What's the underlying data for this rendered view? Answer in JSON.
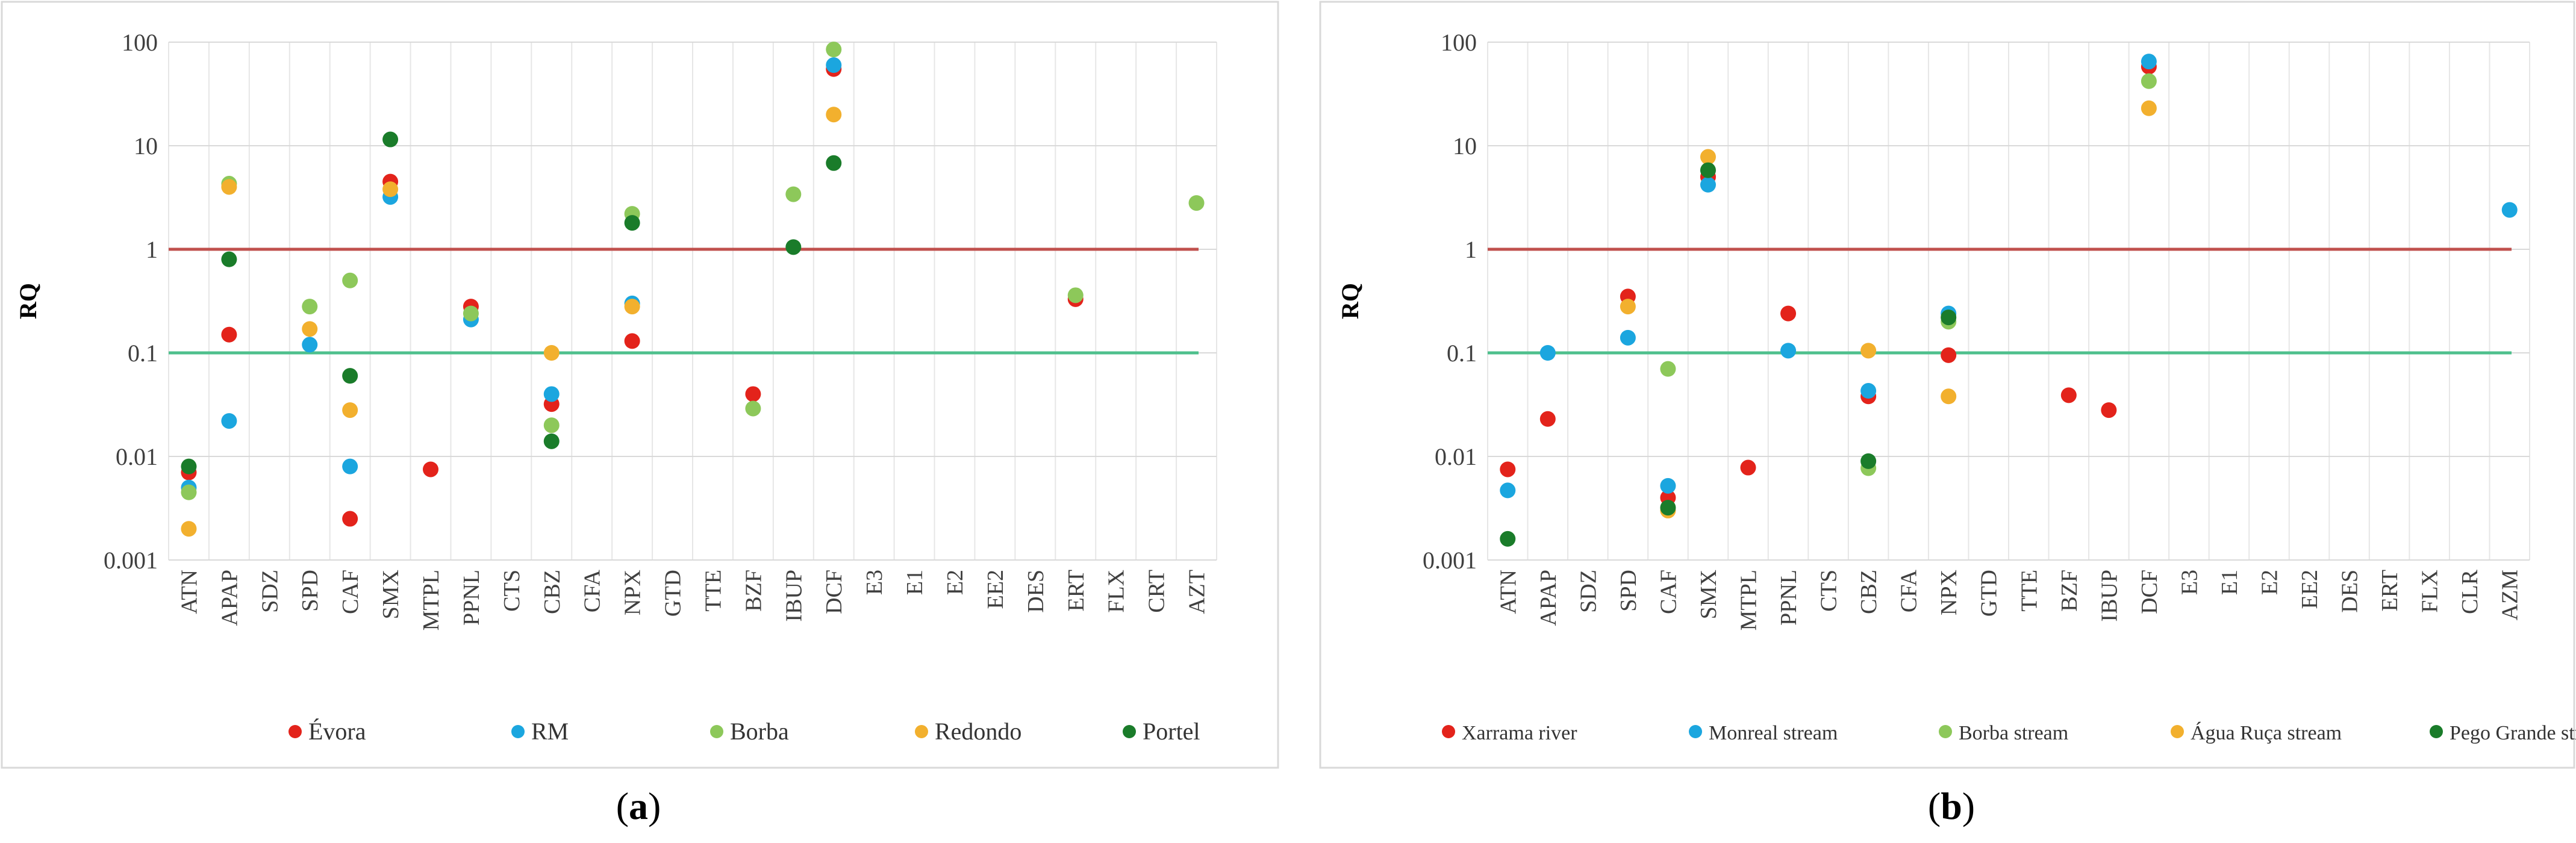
{
  "chart_data": [
    {
      "id": "a",
      "type": "scatter",
      "caption_letter": "a",
      "ylabel": "RQ",
      "yscale": "log",
      "ylim": [
        0.001,
        100
      ],
      "ytick_labels": [
        "0.001",
        "0.01",
        "0.1",
        "1",
        "10",
        "100"
      ],
      "categories": [
        "ATN",
        "APAP",
        "SDZ",
        "SPD",
        "CAF",
        "SMX",
        "MTPL",
        "PPNL",
        "CTS",
        "CBZ",
        "CFA",
        "NPX",
        "GTD",
        "TTE",
        "BZF",
        "IBUP",
        "DCF",
        "E3",
        "E1",
        "E2",
        "EE2",
        "DES",
        "ERT",
        "FLX",
        "CRT",
        "AZT"
      ],
      "thresholds": [
        {
          "value": 1,
          "color": "#c0504d"
        },
        {
          "value": 0.1,
          "color": "#4fc08d"
        }
      ],
      "legend_position": "bottom",
      "series": [
        {
          "name": "Évora",
          "color": "#e3231b",
          "points": [
            [
              "ATN",
              0.007
            ],
            [
              "APAP",
              0.15
            ],
            [
              "CAF",
              0.0025
            ],
            [
              "SMX",
              4.5
            ],
            [
              "MTPL",
              0.0075
            ],
            [
              "PPNL",
              0.28
            ],
            [
              "CBZ",
              0.032
            ],
            [
              "NPX",
              0.13
            ],
            [
              "BZF",
              0.04
            ],
            [
              "DCF",
              55
            ],
            [
              "ERT",
              0.33
            ]
          ]
        },
        {
          "name": "RM",
          "color": "#1ba6df",
          "points": [
            [
              "ATN",
              0.005
            ],
            [
              "APAP",
              0.022
            ],
            [
              "SPD",
              0.12
            ],
            [
              "CAF",
              0.008
            ],
            [
              "SMX",
              3.2
            ],
            [
              "PPNL",
              0.21
            ],
            [
              "CBZ",
              0.04
            ],
            [
              "NPX",
              0.3
            ],
            [
              "DCF",
              60
            ]
          ]
        },
        {
          "name": "Borba",
          "color": "#8dc85a",
          "points": [
            [
              "ATN",
              0.0045
            ],
            [
              "APAP",
              4.3
            ],
            [
              "SPD",
              0.28
            ],
            [
              "CAF",
              0.5
            ],
            [
              "PPNL",
              0.24
            ],
            [
              "CBZ",
              0.02
            ],
            [
              "NPX",
              2.2
            ],
            [
              "BZF",
              0.029
            ],
            [
              "IBUP",
              3.4
            ],
            [
              "DCF",
              85
            ],
            [
              "ERT",
              0.36
            ],
            [
              "AZT",
              2.8
            ]
          ]
        },
        {
          "name": "Redondo",
          "color": "#f2b02e",
          "points": [
            [
              "ATN",
              0.002
            ],
            [
              "APAP",
              4.0
            ],
            [
              "SPD",
              0.17
            ],
            [
              "CAF",
              0.028
            ],
            [
              "SMX",
              3.8
            ],
            [
              "CBZ",
              0.1
            ],
            [
              "NPX",
              0.28
            ],
            [
              "DCF",
              20
            ]
          ]
        },
        {
          "name": "Portel",
          "color": "#1a7c2a",
          "points": [
            [
              "ATN",
              0.008
            ],
            [
              "APAP",
              0.8
            ],
            [
              "CAF",
              0.06
            ],
            [
              "SMX",
              11.5
            ],
            [
              "CBZ",
              0.014
            ],
            [
              "NPX",
              1.8
            ],
            [
              "IBUP",
              1.05
            ],
            [
              "DCF",
              6.8
            ]
          ]
        }
      ]
    },
    {
      "id": "b",
      "type": "scatter",
      "caption_letter": "b",
      "ylabel": "RQ",
      "yscale": "log",
      "ylim": [
        0.001,
        100
      ],
      "ytick_labels": [
        "0.001",
        "0.01",
        "0.1",
        "1",
        "10",
        "100"
      ],
      "categories": [
        "ATN",
        "APAP",
        "SDZ",
        "SPD",
        "CAF",
        "SMX",
        "MTPL",
        "PPNL",
        "CTS",
        "CBZ",
        "CFA",
        "NPX",
        "GTD",
        "TTE",
        "BZF",
        "IBUP",
        "DCF",
        "E3",
        "E1",
        "E2",
        "EE2",
        "DES",
        "ERT",
        "FLX",
        "CLR",
        "AZM"
      ],
      "thresholds": [
        {
          "value": 1,
          "color": "#c0504d"
        },
        {
          "value": 0.1,
          "color": "#4fc08d"
        }
      ],
      "legend_position": "bottom",
      "series": [
        {
          "name": "Xarrama river",
          "color": "#e3231b",
          "points": [
            [
              "ATN",
              0.0075
            ],
            [
              "APAP",
              0.023
            ],
            [
              "SPD",
              0.35
            ],
            [
              "CAF",
              0.004
            ],
            [
              "SMX",
              5.0
            ],
            [
              "MTPL",
              0.0078
            ],
            [
              "PPNL",
              0.24
            ],
            [
              "CBZ",
              0.038
            ],
            [
              "NPX",
              0.095
            ],
            [
              "BZF",
              0.039
            ],
            [
              "IBUP",
              0.028
            ],
            [
              "DCF",
              58
            ]
          ]
        },
        {
          "name": "Monreal stream",
          "color": "#1ba6df",
          "points": [
            [
              "ATN",
              0.0047
            ],
            [
              "APAP",
              0.1
            ],
            [
              "SPD",
              0.14
            ],
            [
              "CAF",
              0.0052
            ],
            [
              "SMX",
              4.2
            ],
            [
              "PPNL",
              0.105
            ],
            [
              "CBZ",
              0.043
            ],
            [
              "NPX",
              0.24
            ],
            [
              "DCF",
              65
            ],
            [
              "AZM",
              2.4
            ]
          ]
        },
        {
          "name": "Borba stream",
          "color": "#8dc85a",
          "points": [
            [
              "CAF",
              0.07
            ],
            [
              "CBZ",
              0.0077
            ],
            [
              "NPX",
              0.2
            ],
            [
              "DCF",
              42
            ]
          ]
        },
        {
          "name": "Água Ruça stream",
          "color": "#f2b02e",
          "points": [
            [
              "SPD",
              0.28
            ],
            [
              "CAF",
              0.003
            ],
            [
              "SMX",
              7.8
            ],
            [
              "CBZ",
              0.105
            ],
            [
              "NPX",
              0.038
            ],
            [
              "DCF",
              23
            ]
          ]
        },
        {
          "name": "Pego Grande stream",
          "color": "#1a7c2a",
          "points": [
            [
              "ATN",
              0.0016
            ],
            [
              "CAF",
              0.0032
            ],
            [
              "SMX",
              5.8
            ],
            [
              "CBZ",
              0.009
            ],
            [
              "NPX",
              0.22
            ]
          ]
        }
      ]
    }
  ]
}
